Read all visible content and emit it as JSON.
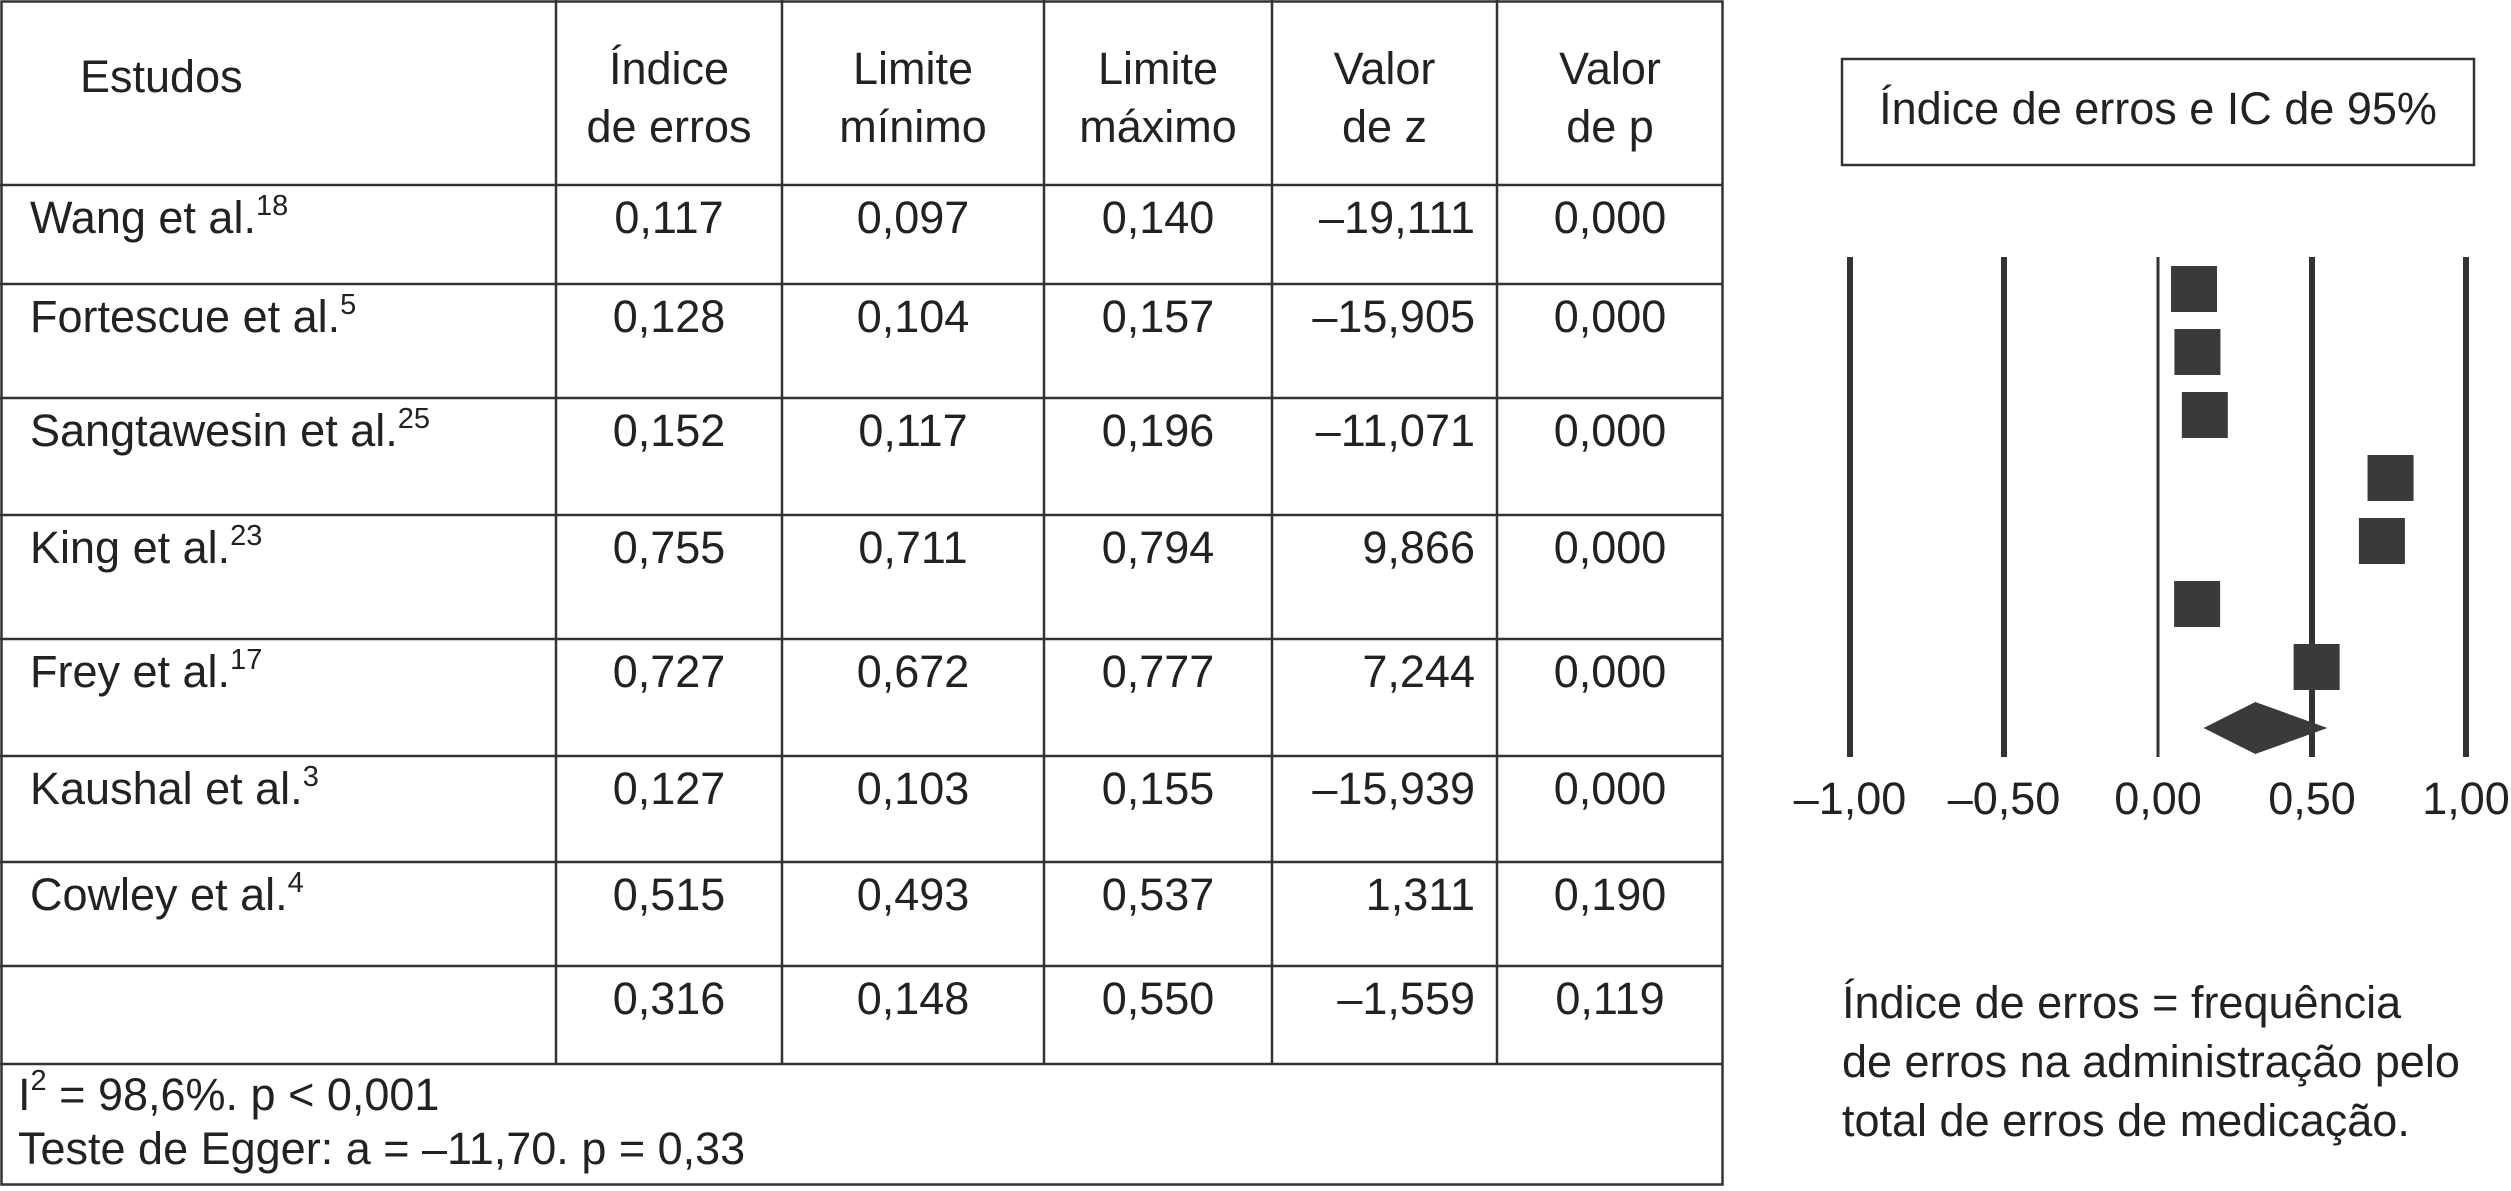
{
  "table": {
    "header": [
      [
        "Estudos"
      ],
      [
        "Índice",
        "de erros"
      ],
      [
        "Limite",
        "mínimo"
      ],
      [
        "Limite",
        "máximo"
      ],
      [
        "Valor",
        "de z"
      ],
      [
        "Valor",
        "de p"
      ]
    ],
    "rows": [
      {
        "study": "Wang et al.",
        "ref": "18",
        "cells": [
          "0,117",
          "0,097",
          "0,140",
          "–19,111",
          "0,000"
        ]
      },
      {
        "study": "Fortescue et al.",
        "ref": "5",
        "cells": [
          "0,128",
          "0,104",
          "0,157",
          "–15,905",
          "0,000"
        ]
      },
      {
        "study": "Sangtawesin et al.",
        "ref": "25",
        "cells": [
          "0,152",
          "0,117",
          "0,196",
          "–11,071",
          "0,000"
        ]
      },
      {
        "study": "King et al.",
        "ref": "23",
        "cells": [
          "0,755",
          "0,711",
          "0,794",
          "9,866",
          "0,000"
        ]
      },
      {
        "study": "Frey et al.",
        "ref": "17",
        "cells": [
          "0,727",
          "0,672",
          "0,777",
          "7,244",
          "0,000"
        ]
      },
      {
        "study": "Kaushal et al.",
        "ref": "3",
        "cells": [
          "0,127",
          "0,103",
          "0,155",
          "–15,939",
          "0,000"
        ]
      },
      {
        "study": "Cowley et al.",
        "ref": "4",
        "cells": [
          "0,515",
          "0,493",
          "0,537",
          "1,311",
          "0,190"
        ]
      },
      {
        "cells": [
          "0,316",
          "0,148",
          "0,550",
          "–1,559",
          "0,119"
        ]
      }
    ],
    "footer": {
      "i": "I",
      "sup": "2",
      "stat": " = 98,6%. p < 0,001",
      "egger": "Teste de Egger: a = –11,70.  p = 0,33"
    }
  },
  "chart_data": {
    "type": "forest",
    "title": "Índice de erros e IC de 95%",
    "values": [
      0.117,
      0.128,
      0.152,
      0.755,
      0.727,
      0.127,
      0.515
    ],
    "summary": {
      "value": 0.316,
      "lower": 0.148,
      "upper": 0.55
    },
    "xlim": [
      -1,
      1
    ],
    "xticks": [
      {
        "value": -1,
        "label": "–1,00"
      },
      {
        "value": -0.5,
        "label": "–0,50"
      },
      {
        "value": 0,
        "label": "0,00"
      },
      {
        "value": 0.5,
        "label": "0,50"
      },
      {
        "value": 1,
        "label": "1,00"
      }
    ],
    "color": "#3a3a3a",
    "note": [
      "Índice de erros = frequência",
      "de erros na administração pelo",
      "total de erros de medicação."
    ]
  }
}
